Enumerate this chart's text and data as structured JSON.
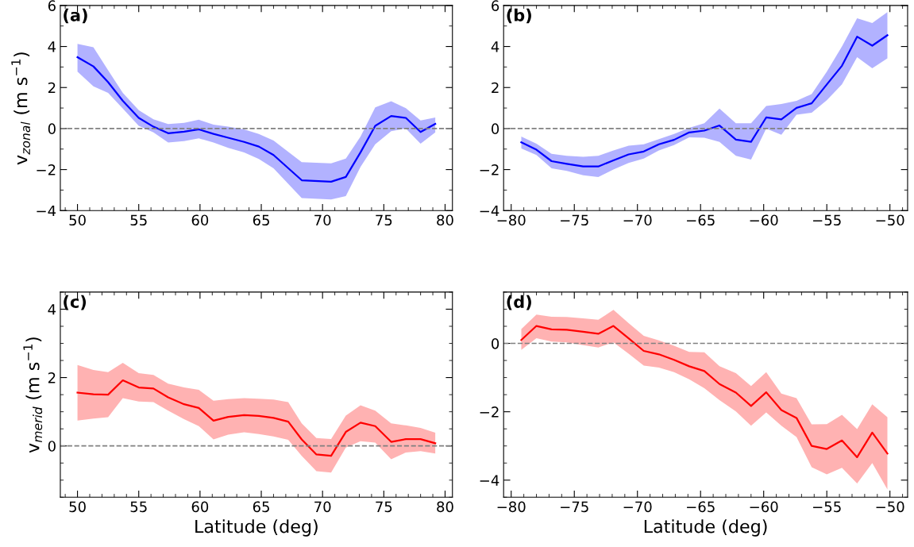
{
  "chart_data": [
    {
      "type": "line",
      "ylabel": "v$_{zonal}$ (m s$^{−1}$)",
      "annotations": [
        "(a)"
      ],
      "xlim": [
        48.6,
        80.6
      ],
      "xticks": [
        50,
        55,
        60,
        65,
        70,
        75,
        80
      ],
      "ylim": [
        -4,
        6
      ],
      "yticks": [
        -4,
        -2,
        0,
        2,
        4,
        6
      ],
      "ref_lines": [
        {
          "axis": "y",
          "value": 0,
          "color": "#808080",
          "line_style": "dashed"
        }
      ],
      "x": [
        50,
        51.3,
        52.5,
        53.7,
        55,
        56.2,
        57.4,
        58.7,
        59.9,
        61.1,
        62.3,
        63.6,
        64.8,
        66,
        68.3,
        70.7,
        71.9,
        73.1,
        74.3,
        75.6,
        76.8,
        78,
        79.2
      ],
      "series": [
        {
          "color": "#0000ff",
          "values": [
            3.48,
            3.03,
            2.26,
            1.35,
            0.52,
            0.09,
            -0.23,
            -0.15,
            -0.04,
            -0.26,
            -0.45,
            -0.65,
            -0.88,
            -1.29,
            -2.52,
            -2.59,
            -2.36,
            -1.16,
            0.13,
            0.61,
            0.52,
            -0.17,
            0.23
          ],
          "upper": [
            4.13,
            3.96,
            2.84,
            1.74,
            0.9,
            0.45,
            0.22,
            0.28,
            0.43,
            0.19,
            0.09,
            -0.04,
            -0.26,
            -0.58,
            -1.64,
            -1.7,
            -1.46,
            -0.39,
            1.03,
            1.33,
            0.99,
            0.39,
            0.54
          ],
          "lower": [
            2.77,
            2.06,
            1.74,
            0.97,
            0.13,
            -0.19,
            -0.68,
            -0.61,
            -0.48,
            -0.68,
            -0.94,
            -1.16,
            -1.48,
            -1.94,
            -3.39,
            -3.46,
            -3.29,
            -1.87,
            -0.77,
            -0.13,
            0.0,
            -0.74,
            -0.19
          ]
        }
      ]
    },
    {
      "type": "line",
      "annotations": [
        "(b)"
      ],
      "xlim": [
        -80.6,
        -48.6
      ],
      "xticks": [
        -80,
        -75,
        -70,
        -65,
        -60,
        -55,
        -50
      ],
      "ylim": [
        -4,
        6
      ],
      "yticks": [
        -4,
        -2,
        0,
        2,
        4,
        6
      ],
      "ref_lines": [
        {
          "axis": "y",
          "value": 0,
          "color": "#808080",
          "line_style": "dashed"
        }
      ],
      "x": [
        -79.2,
        -78,
        -76.8,
        -75.6,
        -74.3,
        -73.1,
        -71.9,
        -70.7,
        -69.5,
        -68.3,
        -67.1,
        -65.9,
        -64.7,
        -63.5,
        -62.2,
        -61.0,
        -59.8,
        -58.6,
        -57.4,
        -56.2,
        -55.0,
        -53.8,
        -52.6,
        -51.4,
        -50.2
      ],
      "series": [
        {
          "color": "#0000ff",
          "values": [
            -0.67,
            -1.03,
            -1.59,
            -1.72,
            -1.85,
            -1.85,
            -1.55,
            -1.26,
            -1.12,
            -0.77,
            -0.55,
            -0.19,
            -0.1,
            0.15,
            -0.54,
            -0.65,
            0.54,
            0.45,
            1.01,
            1.23,
            2.15,
            3.06,
            4.48,
            4.04,
            4.55
          ],
          "upper": [
            -0.39,
            -0.74,
            -1.23,
            -1.33,
            -1.38,
            -1.33,
            -1.07,
            -0.84,
            -0.77,
            -0.52,
            -0.26,
            0.04,
            0.26,
            0.97,
            0.26,
            0.26,
            1.1,
            1.2,
            1.35,
            1.68,
            2.77,
            4.0,
            5.38,
            5.14,
            5.68
          ],
          "lower": [
            -0.97,
            -1.29,
            -1.94,
            -2.06,
            -2.28,
            -2.36,
            -2.0,
            -1.68,
            -1.46,
            -1.07,
            -0.81,
            -0.43,
            -0.45,
            -0.65,
            -1.33,
            -1.51,
            0.0,
            -0.3,
            0.67,
            0.77,
            1.38,
            2.15,
            3.48,
            2.94,
            3.42
          ]
        }
      ]
    },
    {
      "type": "line",
      "ylabel": "v$_{merid}$ (m s$^{−1}$)",
      "xlabel": "Latitude (deg)",
      "annotations": [
        "(c)"
      ],
      "xlim": [
        48.6,
        80.6
      ],
      "xticks": [
        50,
        55,
        60,
        65,
        70,
        75,
        80
      ],
      "ylim": [
        -1.5,
        4.5
      ],
      "yticks": [
        0,
        2,
        4
      ],
      "ref_lines": [
        {
          "axis": "y",
          "value": 0,
          "color": "#808080",
          "line_style": "dashed"
        }
      ],
      "x": [
        50,
        51.3,
        52.5,
        53.7,
        55,
        56.2,
        57.4,
        58.7,
        59.9,
        61.1,
        62.3,
        63.6,
        64.8,
        66,
        67.2,
        68.3,
        69.5,
        70.7,
        71.9,
        73.1,
        74.3,
        75.6,
        76.8,
        78,
        79.2
      ],
      "series": [
        {
          "color": "#ff0000",
          "values": [
            1.56,
            1.51,
            1.5,
            1.92,
            1.71,
            1.68,
            1.42,
            1.22,
            1.11,
            0.74,
            0.85,
            0.9,
            0.88,
            0.82,
            0.71,
            0.19,
            -0.25,
            -0.29,
            0.41,
            0.68,
            0.58,
            0.12,
            0.2,
            0.2,
            0.08
          ],
          "upper": [
            2.37,
            2.22,
            2.16,
            2.43,
            2.13,
            2.08,
            1.82,
            1.71,
            1.64,
            1.32,
            1.37,
            1.4,
            1.38,
            1.36,
            1.28,
            0.66,
            0.23,
            0.2,
            0.89,
            1.19,
            1.03,
            0.66,
            0.6,
            0.53,
            0.39
          ],
          "lower": [
            0.74,
            0.8,
            0.84,
            1.4,
            1.3,
            1.28,
            1.03,
            0.78,
            0.58,
            0.19,
            0.33,
            0.4,
            0.35,
            0.28,
            0.18,
            -0.29,
            -0.74,
            -0.78,
            -0.05,
            0.14,
            0.1,
            -0.39,
            -0.19,
            -0.15,
            -0.22
          ]
        }
      ]
    },
    {
      "type": "line",
      "xlabel": "Latitude (deg)",
      "annotations": [
        "(d)"
      ],
      "xlim": [
        -80.6,
        -48.6
      ],
      "xticks": [
        -80,
        -75,
        -70,
        -65,
        -60,
        -55,
        -50
      ],
      "ylim": [
        -4.5,
        1.5
      ],
      "yticks": [
        -4,
        -2,
        0
      ],
      "ref_lines": [
        {
          "axis": "y",
          "value": 0,
          "color": "#808080",
          "line_style": "dashed"
        }
      ],
      "x": [
        -79.2,
        -78,
        -76.8,
        -75.6,
        -74.3,
        -73.1,
        -71.9,
        -70.7,
        -69.5,
        -68.3,
        -67.1,
        -65.9,
        -64.7,
        -63.5,
        -62.2,
        -61.0,
        -59.8,
        -58.6,
        -57.4,
        -56.2,
        -55.0,
        -53.8,
        -52.6,
        -51.4,
        -50.2
      ],
      "series": [
        {
          "color": "#ff0000",
          "values": [
            0.1,
            0.51,
            0.41,
            0.4,
            0.34,
            0.28,
            0.51,
            0.15,
            -0.22,
            -0.32,
            -0.48,
            -0.67,
            -0.81,
            -1.19,
            -1.44,
            -1.83,
            -1.43,
            -1.95,
            -2.18,
            -3.0,
            -3.09,
            -2.84,
            -3.33,
            -2.61,
            -3.22
          ],
          "upper": [
            0.42,
            0.84,
            0.78,
            0.77,
            0.73,
            0.69,
            0.98,
            0.59,
            0.22,
            0.09,
            -0.07,
            -0.25,
            -0.26,
            -0.67,
            -0.87,
            -1.25,
            -0.84,
            -1.47,
            -1.6,
            -2.37,
            -2.36,
            -2.09,
            -2.51,
            -1.78,
            -2.16
          ],
          "lower": [
            -0.19,
            0.15,
            0.05,
            0.03,
            -0.05,
            -0.12,
            0.03,
            -0.3,
            -0.65,
            -0.71,
            -0.84,
            -1.05,
            -1.31,
            -1.66,
            -1.99,
            -2.41,
            -2.02,
            -2.41,
            -2.74,
            -3.62,
            -3.83,
            -3.64,
            -4.1,
            -3.5,
            -4.27
          ]
        }
      ]
    }
  ]
}
